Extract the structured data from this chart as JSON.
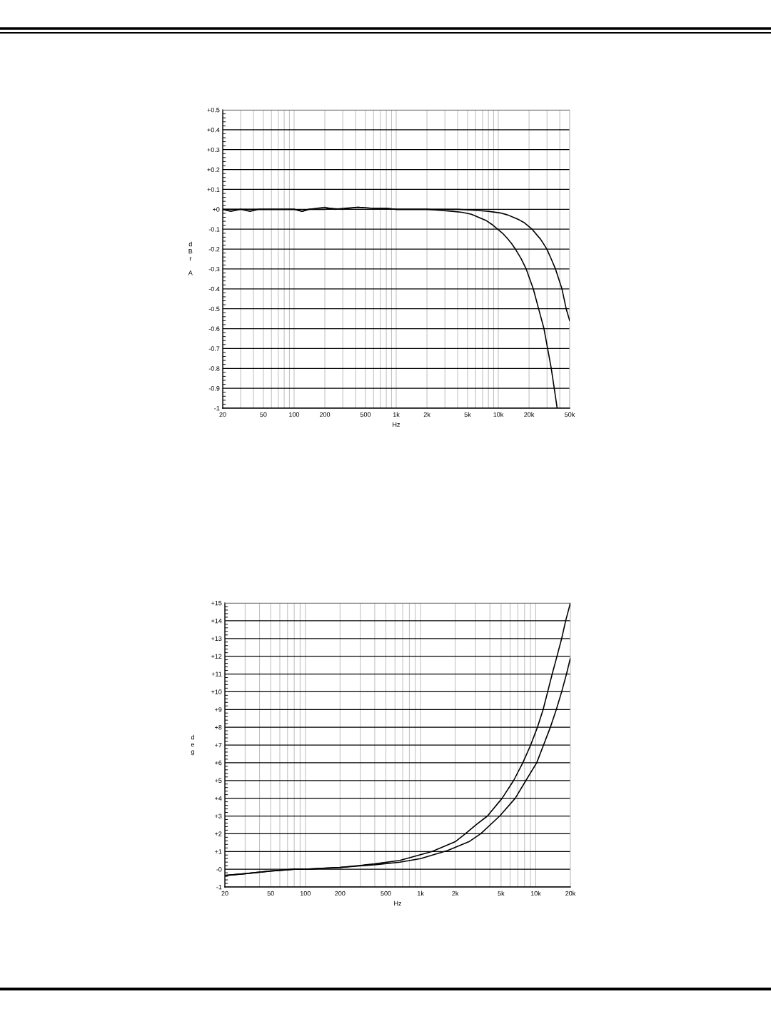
{
  "chart_data": [
    {
      "type": "line",
      "xlabel": "Hz",
      "ylabel": "dBr A",
      "log": "x",
      "grid": true,
      "xlim": [
        20,
        50000
      ],
      "ylim": [
        -1,
        0.5
      ],
      "xticks": [
        20,
        {
          "value": 30,
          "label": null
        },
        {
          "value": 40,
          "label": null
        },
        50,
        {
          "value": 60,
          "label": null
        },
        {
          "value": 70,
          "label": null
        },
        {
          "value": 80,
          "label": null
        },
        {
          "value": 90,
          "label": null
        },
        100,
        200,
        {
          "value": 300,
          "label": null
        },
        {
          "value": 400,
          "label": null
        },
        500,
        {
          "value": 600,
          "label": null
        },
        {
          "value": 700,
          "label": null
        },
        {
          "value": 800,
          "label": null
        },
        {
          "value": 900,
          "label": null
        },
        {
          "value": 1000,
          "label": "1k"
        },
        {
          "value": 2000,
          "label": "2k"
        },
        {
          "value": 3000,
          "label": null
        },
        {
          "value": 4000,
          "label": null
        },
        {
          "value": 5000,
          "label": "5k"
        },
        {
          "value": 6000,
          "label": null
        },
        {
          "value": 7000,
          "label": null
        },
        {
          "value": 8000,
          "label": null
        },
        {
          "value": 9000,
          "label": null
        },
        {
          "value": 10000,
          "label": "10k"
        },
        {
          "value": 20000,
          "label": "20k"
        },
        {
          "value": 30000,
          "label": null
        },
        {
          "value": 40000,
          "label": null
        },
        {
          "value": 50000,
          "label": "50k"
        }
      ],
      "yticks": [
        {
          "value": 0.5,
          "label": "+0.5"
        },
        {
          "value": 0.4,
          "label": "+0.4"
        },
        {
          "value": 0.3,
          "label": "+0.3"
        },
        {
          "value": 0.2,
          "label": "+0.2"
        },
        {
          "value": 0.1,
          "label": "+0.1"
        },
        {
          "value": 0,
          "label": "+0"
        },
        -0.1,
        -0.2,
        -0.3,
        -0.4,
        -0.5,
        -0.6,
        -0.7,
        -0.8,
        -0.9,
        -1
      ],
      "series": [
        {
          "color": "#000000",
          "x": [
            20,
            24,
            30,
            37,
            45,
            60,
            80,
            100,
            120,
            140,
            200,
            230,
            300,
            420,
            600,
            800,
            1000,
            1500,
            2000,
            2700,
            3540,
            4400,
            5450,
            6400,
            7520,
            8600,
            9840,
            11000,
            12200,
            13400,
            14700,
            16600,
            18750,
            22000,
            24800,
            28000,
            30400,
            33000,
            35300,
            37700
          ],
          "values": [
            0,
            -0.01,
            0,
            0,
            0,
            0,
            0,
            0,
            -0.01,
            0,
            0,
            0.005,
            0,
            0.01,
            0.005,
            0.005,
            0,
            0,
            0,
            -0.005,
            -0.01,
            -0.015,
            -0.025,
            -0.04,
            -0.055,
            -0.075,
            -0.1,
            -0.12,
            -0.145,
            -0.17,
            -0.2,
            -0.245,
            -0.3,
            -0.4,
            -0.5,
            -0.6,
            -0.7,
            -0.8,
            -0.9,
            -1.0
          ]
        },
        {
          "color": "#000000",
          "x": [
            20,
            25,
            30,
            37,
            45,
            60,
            80,
            100,
            120,
            140,
            200,
            250,
            300,
            420,
            600,
            800,
            1000,
            2000,
            4000,
            6070,
            8000,
            10400,
            12300,
            14300,
            16000,
            17800,
            21400,
            25900,
            29900,
            33000,
            36300,
            42000,
            46200,
            50000
          ],
          "values": [
            0,
            0,
            0,
            -0.01,
            0,
            0,
            0,
            0,
            -0.01,
            0,
            0.01,
            0,
            0.005,
            0.01,
            0.005,
            0.005,
            0,
            0,
            0,
            -0.005,
            -0.01,
            -0.018,
            -0.028,
            -0.042,
            -0.053,
            -0.066,
            -0.1,
            -0.15,
            -0.2,
            -0.25,
            -0.3,
            -0.4,
            -0.5,
            -0.56
          ]
        }
      ]
    },
    {
      "type": "line",
      "xlabel": "Hz",
      "ylabel": "deg",
      "log": "x",
      "grid": true,
      "xlim": [
        20,
        20000
      ],
      "ylim": [
        -1,
        15
      ],
      "xticks": [
        20,
        {
          "value": 30,
          "label": null
        },
        {
          "value": 40,
          "label": null
        },
        50,
        {
          "value": 60,
          "label": null
        },
        {
          "value": 70,
          "label": null
        },
        {
          "value": 80,
          "label": null
        },
        {
          "value": 90,
          "label": null
        },
        100,
        200,
        {
          "value": 300,
          "label": null
        },
        {
          "value": 400,
          "label": null
        },
        500,
        {
          "value": 600,
          "label": null
        },
        {
          "value": 700,
          "label": null
        },
        {
          "value": 800,
          "label": null
        },
        {
          "value": 900,
          "label": null
        },
        {
          "value": 1000,
          "label": "1k"
        },
        {
          "value": 2000,
          "label": "2k"
        },
        {
          "value": 3000,
          "label": null
        },
        {
          "value": 4000,
          "label": null
        },
        {
          "value": 5000,
          "label": "5k"
        },
        {
          "value": 6000,
          "label": null
        },
        {
          "value": 7000,
          "label": null
        },
        {
          "value": 8000,
          "label": null
        },
        {
          "value": 9000,
          "label": null
        },
        {
          "value": 10000,
          "label": "10k"
        },
        {
          "value": 20000,
          "label": "20k"
        }
      ],
      "yticks": [
        {
          "value": 15,
          "label": "+15"
        },
        {
          "value": 14,
          "label": "+14"
        },
        {
          "value": 13,
          "label": "+13"
        },
        {
          "value": 12,
          "label": "+12"
        },
        {
          "value": 11,
          "label": "+11"
        },
        {
          "value": 10,
          "label": "+10"
        },
        {
          "value": 9,
          "label": "+9"
        },
        {
          "value": 8,
          "label": "+8"
        },
        {
          "value": 7,
          "label": "+7"
        },
        {
          "value": 6,
          "label": "+6"
        },
        {
          "value": 5,
          "label": "+5"
        },
        {
          "value": 4,
          "label": "+4"
        },
        {
          "value": 3,
          "label": "+3"
        },
        {
          "value": 2,
          "label": "+2"
        },
        {
          "value": 1,
          "label": "+1"
        },
        {
          "value": 0,
          "label": "-0"
        },
        -1
      ],
      "series": [
        {
          "color": "#000000",
          "x": [
            20,
            30,
            50,
            80,
            100,
            200,
            400,
            661,
            1260,
            2000,
            2450,
            3030,
            3810,
            5110,
            6430,
            7730,
            9040,
            10350,
            11600,
            12700,
            13900,
            15300,
            16800,
            18200,
            20000
          ],
          "values": [
            -0.35,
            -0.25,
            -0.1,
            0,
            0,
            0.1,
            0.3,
            0.5,
            1.0,
            1.55,
            2.0,
            2.5,
            3.0,
            4.0,
            5.0,
            6.0,
            7.0,
            8.0,
            9.0,
            10.0,
            11.0,
            12.0,
            13.0,
            14.0,
            15.0
          ]
        },
        {
          "color": "#000000",
          "x": [
            20,
            30,
            50,
            80,
            100,
            200,
            400,
            661,
            1000,
            1710,
            2630,
            3330,
            4870,
            6640,
            8220,
            10200,
            11700,
            13400,
            15100,
            16800,
            18500,
            20000
          ],
          "values": [
            -0.35,
            -0.25,
            -0.1,
            0,
            0,
            0.1,
            0.25,
            0.4,
            0.6,
            1.05,
            1.55,
            2.0,
            3.0,
            4.0,
            5.0,
            6.0,
            7.0,
            8.0,
            9.0,
            10.0,
            11.0,
            11.9
          ]
        }
      ]
    }
  ]
}
